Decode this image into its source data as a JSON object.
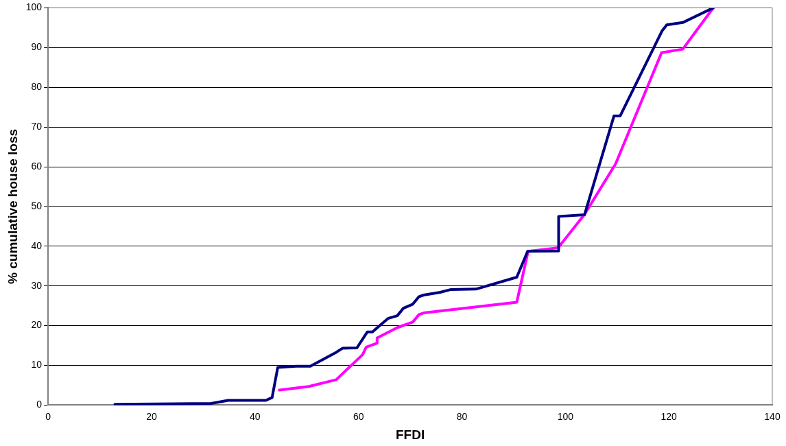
{
  "chart_data": {
    "type": "line",
    "xlabel": "FFDI",
    "ylabel": "% cumulative house loss",
    "series": [
      {
        "color": "#000080",
        "x": [
          12.9,
          31.5,
          34.8,
          42.1,
          43.3,
          44.4,
          47.9,
          50.7,
          55.7,
          56.9,
          59.7,
          61.7,
          62.7,
          64,
          65.7,
          67.5,
          68.7,
          70.5,
          71.7,
          72.6,
          75.8,
          77.9,
          82.7,
          90.6,
          92.7,
          98.7,
          98.7,
          103.7,
          109.4,
          110.6,
          118.7,
          119.6,
          122.7,
          128.6
        ],
        "values": [
          0.2,
          0.4,
          1.2,
          1.2,
          1.9,
          9.5,
          9.8,
          9.8,
          13.3,
          14.3,
          14.4,
          18.4,
          18.4,
          19.9,
          21.8,
          22.5,
          24.4,
          25.4,
          27.3,
          27.7,
          28.4,
          29.1,
          29.2,
          32.2,
          38.7,
          38.8,
          47.5,
          47.9,
          72.8,
          72.8,
          94.2,
          95.7,
          96.3,
          100
        ]
      },
      {
        "color": "#ff00ff",
        "x": [
          44.7,
          50.4,
          55.7,
          60.8,
          61.5,
          63.6,
          63.6,
          67.5,
          70.5,
          71.7,
          72.6,
          90.6,
          92.8,
          98.6,
          103.7,
          109.7,
          118.6,
          122.7,
          128.6
        ],
        "values": [
          3.8,
          4.7,
          6.4,
          12.7,
          14.6,
          15.6,
          16.9,
          19.5,
          20.9,
          22.8,
          23.2,
          25.9,
          38.7,
          39.6,
          48,
          60.7,
          88.7,
          89.6,
          100
        ]
      }
    ],
    "xlim": [
      0,
      140
    ],
    "xticks": [
      0,
      20,
      40,
      60,
      80,
      100,
      120,
      140
    ],
    "ylim": [
      0,
      100
    ],
    "yticks": [
      0,
      10,
      20,
      30,
      40,
      50,
      60,
      70,
      80,
      90,
      100
    ],
    "grid": "y",
    "legend": false,
    "marker": "none",
    "line_style": "solid"
  }
}
